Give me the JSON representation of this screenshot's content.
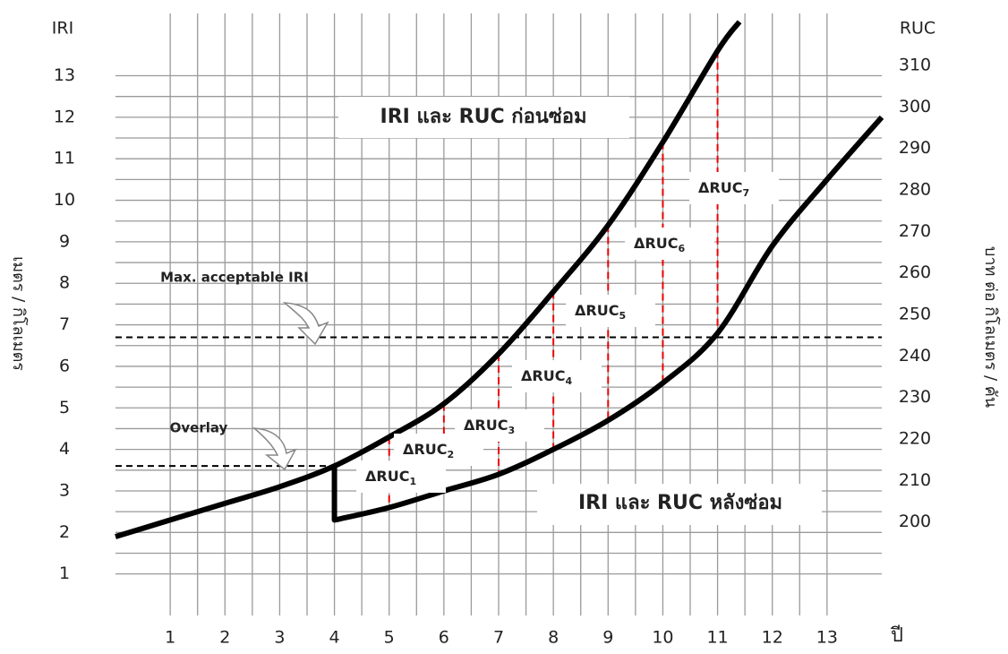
{
  "chart_data": {
    "type": "line",
    "y_axis_title": "IRI",
    "y2_axis_title": "RUC",
    "y_label": "เมตร / กิโลเมตร",
    "y2_label": "บาท ต่อ กิโลเมตร / คัน",
    "x_label": "ปี",
    "xlim": [
      0,
      14
    ],
    "xticks": [
      1,
      2,
      3,
      4,
      5,
      6,
      7,
      8,
      9,
      10,
      11,
      12,
      13
    ],
    "ylim": [
      0,
      14.5
    ],
    "yticks": [
      1,
      2,
      3,
      4,
      5,
      6,
      7,
      8,
      9,
      10,
      11,
      12,
      13
    ],
    "y2lim": [
      177.5,
      322.5
    ],
    "y2ticks": [
      200,
      210,
      220,
      230,
      240,
      250,
      260,
      270,
      280,
      290,
      300,
      310
    ],
    "grid": true,
    "series": [
      {
        "name": "IRI และ RUC ก่อนซ่อม",
        "color": "#000000",
        "x": [
          0,
          1,
          2,
          3,
          4,
          5,
          6,
          7,
          8,
          9,
          10,
          11,
          11.4
        ],
        "values": [
          1.9,
          2.3,
          2.7,
          3.1,
          3.6,
          4.3,
          5.1,
          6.3,
          7.8,
          9.4,
          11.4,
          13.6,
          14.3
        ]
      },
      {
        "name": "IRI และ RUC หลังซ่อม",
        "color": "#000000",
        "x": [
          4,
          4,
          5,
          6,
          7,
          8,
          9,
          10,
          11,
          12,
          13,
          14
        ],
        "values": [
          3.6,
          2.3,
          2.6,
          3.0,
          3.4,
          4.0,
          4.7,
          5.6,
          6.8,
          8.9,
          10.5,
          12.0
        ]
      }
    ],
    "reference_lines": [
      {
        "label": "Max. acceptable IRI",
        "value": 6.7
      },
      {
        "label": "Overlay",
        "value": 3.6,
        "x_end": 4
      }
    ],
    "annotations": [
      {
        "text": "ΔRUC",
        "sub": "1"
      },
      {
        "text": "ΔRUC",
        "sub": "2"
      },
      {
        "text": "ΔRUC",
        "sub": "3"
      },
      {
        "text": "ΔRUC",
        "sub": "4"
      },
      {
        "text": "ΔRUC",
        "sub": "5"
      },
      {
        "text": "ΔRUC",
        "sub": "6"
      },
      {
        "text": "ΔRUC",
        "sub": "7"
      }
    ]
  }
}
